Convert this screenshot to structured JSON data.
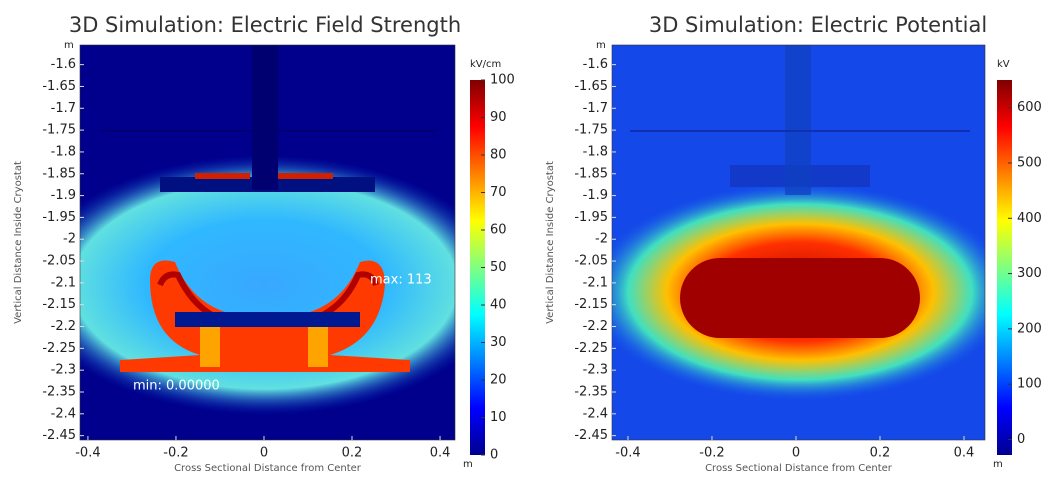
{
  "chart_data": [
    {
      "type": "field",
      "title": "3D Simulation: Electric Field Strength",
      "xlabel": "Cross Sectional Distance from Center",
      "ylabel": "Vertical Distance Inside Cryostat",
      "x_unit": "m",
      "y_unit": "m",
      "colorbar_unit": "kV/cm",
      "colormap": "jet",
      "xlim": [
        -0.418,
        0.434
      ],
      "xticks": [
        -0.4,
        -0.2,
        0,
        0.2,
        0.4
      ],
      "ylim": [
        -2.46,
        -1.555
      ],
      "yticks": [
        -1.6,
        -1.65,
        -1.7,
        -1.75,
        -1.8,
        -1.85,
        -1.9,
        -1.95,
        -2,
        -2.05,
        -2.1,
        -2.15,
        -2.2,
        -2.25,
        -2.3,
        -2.35,
        -2.4,
        -2.45
      ],
      "clim": [
        0,
        100
      ],
      "cticks": [
        0,
        10,
        20,
        30,
        40,
        50,
        60,
        70,
        80,
        90,
        100
      ],
      "annotations": [
        "max: 113",
        "min: 0.00000"
      ]
    },
    {
      "type": "field",
      "title": "3D Simulation: Electric Potential",
      "xlabel": "Cross Sectional Distance from Center",
      "ylabel": "Vertical Distance Inside Cryostat",
      "x_unit": "m",
      "y_unit": "m",
      "colorbar_unit": "kV",
      "colormap": "jet",
      "xlim": [
        -0.438,
        0.45
      ],
      "xticks": [
        -0.4,
        -0.2,
        0,
        0.2,
        0.4
      ],
      "ylim": [
        -2.46,
        -1.555
      ],
      "yticks": [
        -1.6,
        -1.65,
        -1.7,
        -1.75,
        -1.8,
        -1.85,
        -1.9,
        -1.95,
        -2,
        -2.05,
        -2.1,
        -2.15,
        -2.2,
        -2.25,
        -2.3,
        -2.35,
        -2.4,
        -2.45
      ],
      "clim": [
        -28,
        650
      ],
      "cticks": [
        0,
        100,
        200,
        300,
        400,
        500,
        600
      ],
      "annotations": []
    }
  ]
}
